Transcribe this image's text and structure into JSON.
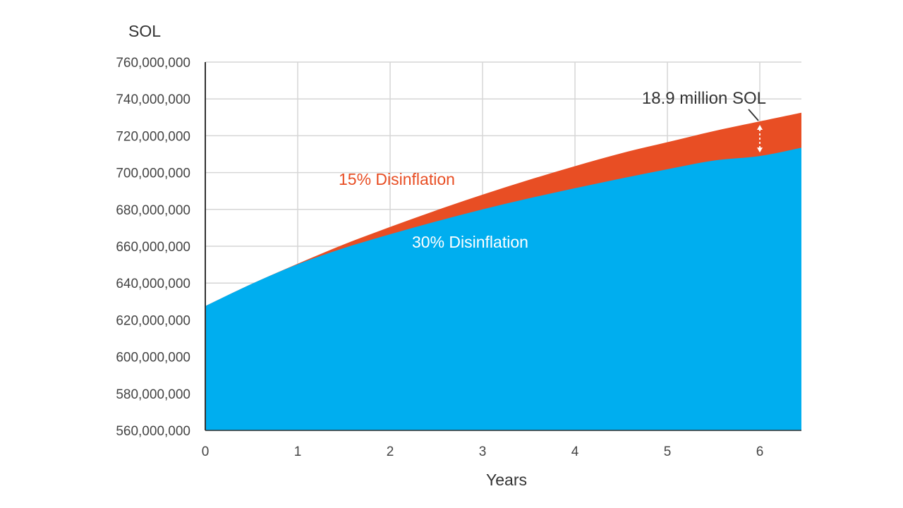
{
  "chart_data": {
    "type": "area",
    "ylabel": "SOL",
    "xlabel": "Years",
    "xlim": [
      0,
      6.45
    ],
    "ylim": [
      560000000,
      760000000
    ],
    "grid": true,
    "xticks": [
      0,
      1,
      2,
      3,
      4,
      5,
      6
    ],
    "xtick_labels": [
      "0",
      "1",
      "2",
      "3",
      "4",
      "5",
      "6"
    ],
    "yticks": [
      560000000,
      580000000,
      600000000,
      620000000,
      640000000,
      660000000,
      680000000,
      700000000,
      720000000,
      740000000,
      760000000
    ],
    "ytick_labels": [
      "560,000,000",
      "580,000,000",
      "600,000,000",
      "620,000,000",
      "640,000,000",
      "660,000,000",
      "680,000,000",
      "700,000,000",
      "720,000,000",
      "740,000,000",
      "760,000,000"
    ],
    "x": [
      0,
      0.5,
      1,
      1.5,
      2,
      2.5,
      3,
      3.5,
      4,
      4.5,
      5,
      5.5,
      6,
      6.45
    ],
    "series": [
      {
        "name": "15% Disinflation",
        "color": "#E84E24",
        "values": [
          627500000,
          639500000,
          650500000,
          661000000,
          670500000,
          679500000,
          688000000,
          696000000,
          703500000,
          710500000,
          716500000,
          722500000,
          727800000,
          732500000
        ]
      },
      {
        "name": "30% Disinflation",
        "color": "#00AEEF",
        "values": [
          627500000,
          639500000,
          650200000,
          659000000,
          666500000,
          673500000,
          680000000,
          686000000,
          691500000,
          696800000,
          701800000,
          706500000,
          709000000,
          713500000
        ]
      }
    ],
    "annotations": [
      {
        "text": "18.9 million SOL",
        "x": 6
      }
    ]
  }
}
